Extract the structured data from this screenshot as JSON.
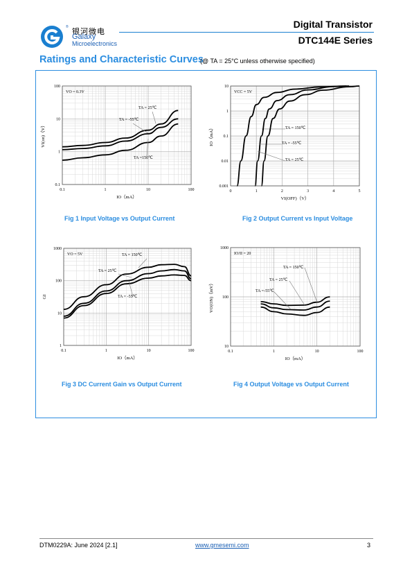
{
  "header": {
    "company_cn": "银河微电",
    "company_en": "Galaxy",
    "company_sub": "Microelectronics",
    "registered": "®",
    "doc_title": "Digital Transistor",
    "series": "DTC144E Series"
  },
  "section": {
    "title": "Ratings and Characteristic Curves",
    "condition": "(@ TA = 25°C unless otherwise specified)"
  },
  "colors": {
    "accent": "#2b8de0",
    "brand": "#1a5fb4"
  },
  "chart_data": [
    {
      "type": "line",
      "caption": "Fig 1   Input Voltage vs Output Current",
      "xlabel": "IO（mA）",
      "ylabel": "VI(on)（V）",
      "xscale": "log",
      "yscale": "log",
      "xlim": [
        0.1,
        100
      ],
      "ylim": [
        0.1,
        100
      ],
      "xticks": [
        "0.1",
        "1",
        "10",
        "100"
      ],
      "yticks": [
        "0.1",
        "1",
        "10",
        "100"
      ],
      "condition": "VO = 0.3V",
      "series": [
        {
          "name": "TA = 25℃",
          "x": [
            0.1,
            0.3,
            1,
            3,
            10,
            20,
            50
          ],
          "y": [
            1.4,
            1.55,
            1.9,
            2.6,
            4.5,
            7,
            18
          ]
        },
        {
          "name": "TA = -55℃",
          "x": [
            0.1,
            0.3,
            1,
            3,
            10,
            20,
            50
          ],
          "y": [
            1.15,
            1.25,
            1.5,
            2.1,
            3.5,
            5.5,
            10
          ]
        },
        {
          "name": "TA =150℃",
          "x": [
            0.1,
            0.3,
            1,
            3,
            10,
            20,
            50
          ],
          "y": [
            0.55,
            0.65,
            0.8,
            1.1,
            1.9,
            3,
            7
          ]
        }
      ]
    },
    {
      "type": "line",
      "caption": "Fig 2   Output Current vs Input Voltage",
      "xlabel": "VI(OFF)（V）",
      "ylabel": "IO（mA）",
      "xscale": "linear",
      "yscale": "log",
      "xlim": [
        0,
        5
      ],
      "ylim": [
        0.001,
        10
      ],
      "xticks": [
        "0",
        "1",
        "2",
        "3",
        "4",
        "5"
      ],
      "yticks": [
        "0.001",
        "0.01",
        "0.1",
        "1",
        "10"
      ],
      "condition": "VCC = 5V",
      "series": [
        {
          "name": "TA = 150℃",
          "x": [
            0.25,
            0.4,
            0.6,
            0.8,
            1.0,
            1.3,
            1.8,
            2.5,
            3.5,
            4.5
          ],
          "y": [
            0.001,
            0.01,
            0.1,
            0.6,
            1.8,
            3.5,
            5.5,
            7.5,
            9.2,
            10
          ]
        },
        {
          "name": "TA = -55℃",
          "x": [
            0.95,
            1.05,
            1.2,
            1.35,
            1.5,
            1.8,
            2.3,
            3,
            4,
            4.6
          ],
          "y": [
            0.001,
            0.01,
            0.1,
            0.5,
            1.2,
            2.6,
            4.5,
            7,
            9.5,
            10
          ]
        },
        {
          "name": "TA = 25℃",
          "x": [
            1.2,
            1.3,
            1.45,
            1.65,
            1.9,
            2.3,
            2.9,
            3.6,
            4.6,
            5
          ],
          "y": [
            0.001,
            0.01,
            0.1,
            0.5,
            1.2,
            2.5,
            4.5,
            6.8,
            9.3,
            10
          ]
        }
      ]
    },
    {
      "type": "line",
      "caption": "Fig 3   DC Current Gain vs Output Current",
      "xlabel": "IO（mA）",
      "ylabel": "GI",
      "xscale": "log",
      "yscale": "log",
      "xlim": [
        0.1,
        100
      ],
      "ylim": [
        1,
        1000
      ],
      "xticks": [
        "0.1",
        "1",
        "10",
        "100"
      ],
      "yticks": [
        "1",
        "10",
        "100",
        "1000"
      ],
      "condition": "VO = 5V",
      "series": [
        {
          "name": "TA = 150℃",
          "x": [
            0.1,
            0.3,
            1,
            3,
            10,
            20,
            40,
            70,
            100
          ],
          "y": [
            13,
            32,
            75,
            160,
            260,
            310,
            320,
            270,
            140
          ]
        },
        {
          "name": "TA = 25℃",
          "x": [
            0.1,
            0.3,
            1,
            3,
            10,
            20,
            40,
            70,
            100
          ],
          "y": [
            8,
            20,
            48,
            100,
            165,
            200,
            220,
            200,
            115
          ]
        },
        {
          "name": "TA = -55℃",
          "x": [
            0.1,
            0.3,
            1,
            3,
            10,
            20,
            40,
            70,
            100
          ],
          "y": [
            7,
            17,
            40,
            80,
            120,
            140,
            150,
            145,
            100
          ]
        }
      ]
    },
    {
      "type": "line",
      "caption": "Fig 4   Output Voltage vs Output Current",
      "xlabel": "IO（mA）",
      "ylabel": "VO(ON)（mV）",
      "xscale": "log",
      "yscale": "log",
      "xlim": [
        0.1,
        100
      ],
      "ylim": [
        10,
        1000
      ],
      "xticks": [
        "0.1",
        "1",
        "10",
        "100"
      ],
      "yticks": [
        "10",
        "100",
        "1000"
      ],
      "condition": "IO/II = 20",
      "series": [
        {
          "name": "TA = 150℃",
          "x": [
            0.5,
            1,
            2,
            5,
            10,
            20
          ],
          "y": [
            80,
            72,
            67,
            68,
            78,
            100
          ]
        },
        {
          "name": "TA = 25℃",
          "x": [
            0.5,
            1,
            2,
            5,
            10,
            20
          ],
          "y": [
            72,
            60,
            55,
            54,
            62,
            82
          ]
        },
        {
          "name": "TA =-55℃",
          "x": [
            0.5,
            1,
            2,
            5,
            10,
            20
          ],
          "y": [
            62,
            50,
            45,
            42,
            48,
            62
          ]
        }
      ]
    }
  ],
  "footer": {
    "doc_id": "DTM0229A: June 2024 [2.1]",
    "website": "www.gmesemi.com",
    "page": "3"
  }
}
